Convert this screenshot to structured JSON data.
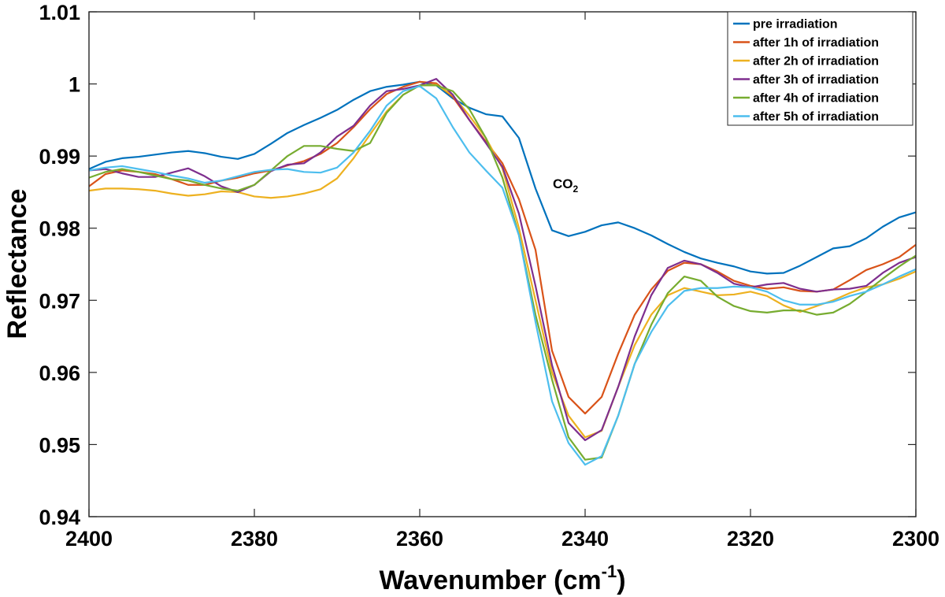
{
  "chart_data": {
    "type": "line",
    "xlabel_main": "Wavenumber (cm",
    "xlabel_sup": "-1",
    "xlabel_end": ")",
    "ylabel": "Reflectance",
    "xlim": [
      2400,
      2300
    ],
    "ylim": [
      0.94,
      1.01
    ],
    "x_reversed": true,
    "xticks": [
      2400,
      2380,
      2360,
      2340,
      2320,
      2300
    ],
    "yticks": [
      0.94,
      0.95,
      0.96,
      0.97,
      0.98,
      0.99,
      1.0,
      1.01
    ],
    "ytick_labels": [
      "0.94",
      "0.95",
      "0.96",
      "0.97",
      "0.98",
      "0.99",
      "1",
      "1.01"
    ],
    "grid": false,
    "legend_position": "top-right",
    "annotation": {
      "text": "CO",
      "subscript": "2",
      "x": 2342,
      "y": 0.9862
    },
    "x": [
      2400,
      2398,
      2396,
      2394,
      2392,
      2390,
      2388,
      2386,
      2384,
      2382,
      2380,
      2378,
      2376,
      2374,
      2372,
      2370,
      2368,
      2366,
      2364,
      2362,
      2360,
      2358,
      2356,
      2354,
      2352,
      2350,
      2348,
      2346,
      2344,
      2342,
      2340,
      2338,
      2336,
      2334,
      2332,
      2330,
      2328,
      2326,
      2324,
      2322,
      2320,
      2318,
      2316,
      2314,
      2312,
      2310,
      2308,
      2306,
      2304,
      2302,
      2300
    ],
    "series": [
      {
        "name": "pre irradiation",
        "color": "#0072BD",
        "values": [
          0.9882,
          0.9892,
          0.9897,
          0.9899,
          0.9902,
          0.9905,
          0.9907,
          0.9904,
          0.9899,
          0.9896,
          0.9903,
          0.9917,
          0.9932,
          0.9943,
          0.9953,
          0.9964,
          0.9978,
          0.999,
          0.9996,
          0.9999,
          1.0003,
          0.9998,
          0.998,
          0.9967,
          0.9958,
          0.9955,
          0.9925,
          0.9855,
          0.9797,
          0.9789,
          0.9795,
          0.9804,
          0.9808,
          0.98,
          0.979,
          0.9778,
          0.9767,
          0.9758,
          0.9752,
          0.9747,
          0.974,
          0.9737,
          0.9738,
          0.9748,
          0.976,
          0.9772,
          0.9775,
          0.9786,
          0.9802,
          0.9815,
          0.9822
        ]
      },
      {
        "name": "after 1h of irradiation",
        "color": "#D95319",
        "values": [
          0.9858,
          0.9875,
          0.988,
          0.9878,
          0.9875,
          0.9868,
          0.986,
          0.986,
          0.9866,
          0.987,
          0.9876,
          0.988,
          0.9887,
          0.9893,
          0.9903,
          0.9918,
          0.994,
          0.9965,
          0.9986,
          0.9996,
          1.0003,
          1.0001,
          0.9982,
          0.995,
          0.992,
          0.989,
          0.984,
          0.977,
          0.963,
          0.9566,
          0.9543,
          0.9566,
          0.9626,
          0.968,
          0.9715,
          0.9741,
          0.9752,
          0.975,
          0.974,
          0.9727,
          0.972,
          0.9716,
          0.9718,
          0.9713,
          0.9712,
          0.9715,
          0.9728,
          0.9742,
          0.975,
          0.976,
          0.9777
        ]
      },
      {
        "name": "after 2h of irradiation",
        "color": "#EDB120",
        "values": [
          0.9852,
          0.9855,
          0.9855,
          0.9854,
          0.9852,
          0.9848,
          0.9845,
          0.9847,
          0.9851,
          0.985,
          0.9844,
          0.9842,
          0.9844,
          0.9848,
          0.9854,
          0.9869,
          0.9897,
          0.993,
          0.9962,
          0.9985,
          0.9998,
          0.9999,
          0.9984,
          0.9956,
          0.9925,
          0.9883,
          0.98,
          0.97,
          0.96,
          0.954,
          0.951,
          0.9519,
          0.958,
          0.9638,
          0.968,
          0.9707,
          0.9717,
          0.9712,
          0.9707,
          0.9708,
          0.9712,
          0.9706,
          0.9693,
          0.9684,
          0.9692,
          0.97,
          0.971,
          0.9718,
          0.9722,
          0.973,
          0.974
        ]
      },
      {
        "name": "after 3h of irradiation",
        "color": "#7E2F8E",
        "values": [
          0.988,
          0.9882,
          0.9876,
          0.9871,
          0.9871,
          0.9877,
          0.9883,
          0.9872,
          0.9858,
          0.985,
          0.986,
          0.9879,
          0.9888,
          0.989,
          0.9905,
          0.9927,
          0.9942,
          0.997,
          0.999,
          0.9993,
          0.9998,
          1.0007,
          0.9985,
          0.995,
          0.9918,
          0.9885,
          0.982,
          0.972,
          0.961,
          0.953,
          0.9506,
          0.952,
          0.958,
          0.965,
          0.9707,
          0.9745,
          0.9755,
          0.975,
          0.9738,
          0.9723,
          0.9718,
          0.9722,
          0.9724,
          0.9716,
          0.9712,
          0.9715,
          0.9716,
          0.972,
          0.9738,
          0.9752,
          0.976
        ]
      },
      {
        "name": "after 4h of irradiation",
        "color": "#77AC30",
        "values": [
          0.987,
          0.9878,
          0.9882,
          0.9878,
          0.9873,
          0.9868,
          0.9866,
          0.986,
          0.9855,
          0.9852,
          0.986,
          0.988,
          0.99,
          0.9914,
          0.9914,
          0.991,
          0.9907,
          0.9918,
          0.996,
          0.9985,
          0.9998,
          0.9998,
          0.999,
          0.9965,
          0.9925,
          0.987,
          0.979,
          0.968,
          0.959,
          0.951,
          0.9479,
          0.9482,
          0.954,
          0.9612,
          0.9666,
          0.971,
          0.9733,
          0.9727,
          0.9705,
          0.9692,
          0.9685,
          0.9683,
          0.9686,
          0.9686,
          0.968,
          0.9683,
          0.9695,
          0.9712,
          0.973,
          0.9747,
          0.9762
        ]
      },
      {
        "name": "after 5h of irradiation",
        "color": "#4DBEEE",
        "values": [
          0.988,
          0.9884,
          0.9886,
          0.9882,
          0.9878,
          0.9873,
          0.9869,
          0.9863,
          0.9866,
          0.9872,
          0.9878,
          0.9881,
          0.9882,
          0.9878,
          0.9877,
          0.9884,
          0.9905,
          0.9935,
          0.997,
          0.999,
          0.9997,
          0.998,
          0.994,
          0.9905,
          0.988,
          0.9856,
          0.979,
          0.967,
          0.956,
          0.9502,
          0.9472,
          0.9484,
          0.954,
          0.9612,
          0.9656,
          0.9692,
          0.9713,
          0.9717,
          0.9717,
          0.9719,
          0.9718,
          0.9712,
          0.97,
          0.9694,
          0.9694,
          0.9698,
          0.9706,
          0.9712,
          0.9722,
          0.9733,
          0.9743
        ]
      }
    ]
  }
}
